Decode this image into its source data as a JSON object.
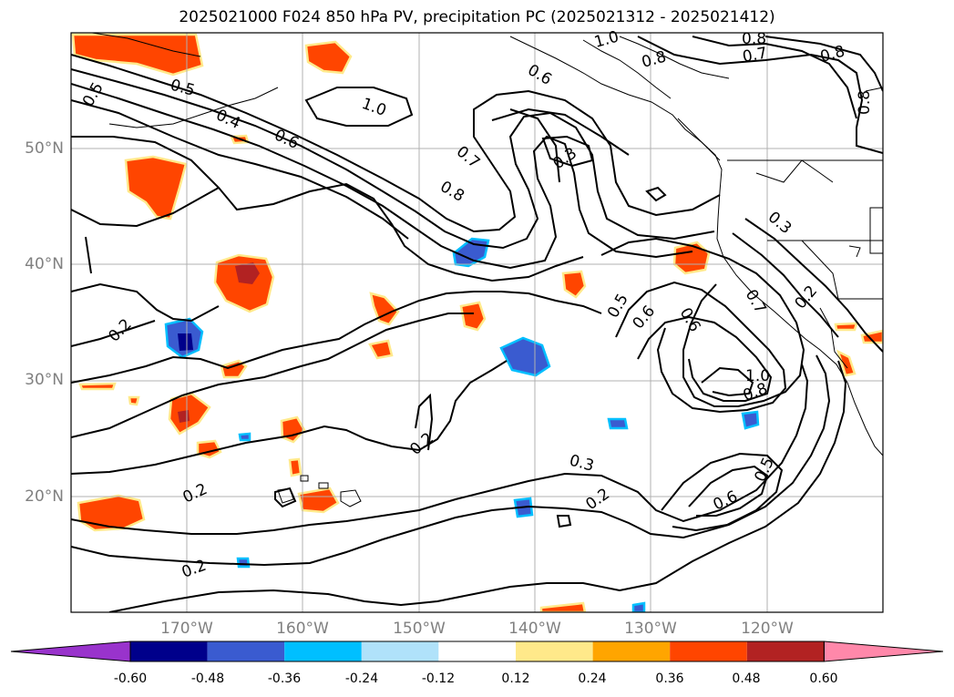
{
  "title": "2025021000 F024 850 hPa PV, precipitation PC (2025021312 - 2025021412)",
  "axes": {
    "lat_labels": [
      "50°N",
      "40°N",
      "30°N",
      "20°N"
    ],
    "lon_labels": [
      "170°W",
      "160°W",
      "150°W",
      "140°W",
      "130°W",
      "120°W"
    ]
  },
  "contour_labels": [
    "0.5",
    "0.4",
    "0.6",
    "1.0",
    "0.7",
    "0.8",
    "0.3",
    "0.2",
    "0.2",
    "0.2",
    "0.3",
    "0.2",
    "0.5",
    "0.6",
    "0.6",
    "0.7",
    "1.0",
    "0.8",
    "0.5",
    "0.6",
    "0.2",
    "0.3",
    "0.6",
    "0.8",
    "0.7",
    "0.8",
    "0.8",
    "1.0"
  ],
  "colorbar": {
    "ticks": [
      "-0.60",
      "-0.48",
      "-0.36",
      "-0.24",
      "-0.12",
      "0.12",
      "0.24",
      "0.36",
      "0.48",
      "0.60"
    ],
    "colors": [
      "#9933cc",
      "#00008b",
      "#3a5bd0",
      "#00bfff",
      "#b0e2fa",
      "#ffffff",
      "#ffe98a",
      "#ffa500",
      "#ff4500",
      "#b22222",
      "#ff88aa"
    ]
  }
}
